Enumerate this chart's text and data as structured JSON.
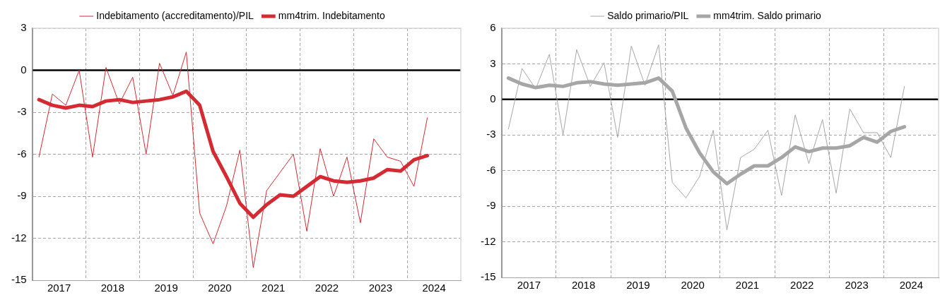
{
  "chart_data": [
    {
      "type": "line",
      "legend": "top",
      "grid": true,
      "marker": "none",
      "line_style": "solid",
      "x": [
        2017.125,
        2017.375,
        2017.625,
        2017.875,
        2018.125,
        2018.375,
        2018.625,
        2018.875,
        2019.125,
        2019.375,
        2019.625,
        2019.875,
        2020.125,
        2020.375,
        2020.625,
        2020.875,
        2021.125,
        2021.375,
        2021.625,
        2021.875,
        2022.125,
        2022.375,
        2022.625,
        2022.875,
        2023.125,
        2023.375,
        2023.625,
        2023.875,
        2024.125,
        2024.375
      ],
      "xlim": [
        2017,
        2025
      ],
      "xticks": [
        {
          "value": 2017.5,
          "label": "2017"
        },
        {
          "value": 2018,
          "label": null
        },
        {
          "value": 2018.5,
          "label": "2018"
        },
        {
          "value": 2019,
          "label": null
        },
        {
          "value": 2019.5,
          "label": "2019"
        },
        {
          "value": 2020,
          "label": null
        },
        {
          "value": 2020.5,
          "label": "2020"
        },
        {
          "value": 2021,
          "label": null
        },
        {
          "value": 2021.5,
          "label": "2021"
        },
        {
          "value": 2022,
          "label": null
        },
        {
          "value": 2022.5,
          "label": "2022"
        },
        {
          "value": 2023,
          "label": null
        },
        {
          "value": 2023.5,
          "label": "2023"
        },
        {
          "value": 2024,
          "label": null
        },
        {
          "value": 2024.5,
          "label": "2024"
        }
      ],
      "ylim": [
        -15,
        3
      ],
      "yticks": [
        -15,
        -12,
        -9,
        -6,
        -3,
        0,
        3
      ],
      "ref_lines": [
        {
          "axis": "y",
          "value": 0,
          "color": "#000000"
        }
      ],
      "series": [
        {
          "name": "Indebitamento (accreditamento)/PIL",
          "color": "#d42a32",
          "values": [
            -6.2,
            -1.7,
            -2.5,
            0.0,
            -6.2,
            0.2,
            -2.4,
            -0.5,
            -6.0,
            0.5,
            -1.8,
            1.3,
            -10.2,
            -12.4,
            -9.7,
            -5.7,
            -14.1,
            -8.6,
            -7.3,
            -6.0,
            -11.5,
            -5.6,
            -9.0,
            -6.2,
            -10.9,
            -4.9,
            -6.2,
            -6.5,
            -8.3,
            -3.4
          ]
        },
        {
          "name": "mm4trim. Indebitamento",
          "color": "#d42a32",
          "values": [
            -2.1,
            -2.5,
            -2.7,
            -2.5,
            -2.6,
            -2.2,
            -2.1,
            -2.3,
            -2.2,
            -2.1,
            -1.9,
            -1.5,
            -2.5,
            -5.8,
            -7.6,
            -9.5,
            -10.5,
            -9.6,
            -8.9,
            -9.0,
            -8.3,
            -7.6,
            -7.9,
            -8.0,
            -7.9,
            -7.7,
            -7.1,
            -7.2,
            -6.4,
            -6.1
          ]
        }
      ]
    },
    {
      "type": "line",
      "legend": "top",
      "grid": true,
      "marker": "none",
      "line_style": "solid",
      "x": [
        2017.125,
        2017.375,
        2017.625,
        2017.875,
        2018.125,
        2018.375,
        2018.625,
        2018.875,
        2019.125,
        2019.375,
        2019.625,
        2019.875,
        2020.125,
        2020.375,
        2020.625,
        2020.875,
        2021.125,
        2021.375,
        2021.625,
        2021.875,
        2022.125,
        2022.375,
        2022.625,
        2022.875,
        2023.125,
        2023.375,
        2023.625,
        2023.875,
        2024.125,
        2024.375
      ],
      "xlim": [
        2017,
        2025
      ],
      "xticks": [
        {
          "value": 2017.5,
          "label": "2017"
        },
        {
          "value": 2018,
          "label": null
        },
        {
          "value": 2018.5,
          "label": "2018"
        },
        {
          "value": 2019,
          "label": null
        },
        {
          "value": 2019.5,
          "label": "2019"
        },
        {
          "value": 2020,
          "label": null
        },
        {
          "value": 2020.5,
          "label": "2020"
        },
        {
          "value": 2021,
          "label": null
        },
        {
          "value": 2021.5,
          "label": "2021"
        },
        {
          "value": 2022,
          "label": null
        },
        {
          "value": 2022.5,
          "label": "2022"
        },
        {
          "value": 2023,
          "label": null
        },
        {
          "value": 2023.5,
          "label": "2023"
        },
        {
          "value": 2024,
          "label": null
        },
        {
          "value": 2024.5,
          "label": "2024"
        }
      ],
      "ylim": [
        -15,
        6
      ],
      "yticks": [
        -15,
        -12,
        -9,
        -6,
        -3,
        0,
        3,
        6
      ],
      "ref_lines": [
        {
          "axis": "y",
          "value": 0,
          "color": "#000000"
        }
      ],
      "series": [
        {
          "name": "Saldo primario/PIL",
          "color": "#a6a6a6",
          "values": [
            -2.5,
            2.6,
            0.9,
            3.8,
            -3.0,
            4.2,
            1.1,
            3.1,
            -3.2,
            4.5,
            1.2,
            4.6,
            -7.0,
            -8.3,
            -6.5,
            -2.6,
            -11.0,
            -4.9,
            -4.2,
            -2.6,
            -8.1,
            -1.3,
            -5.4,
            -1.7,
            -7.9,
            -0.8,
            -2.8,
            -2.8,
            -4.9,
            1.1
          ]
        },
        {
          "name": "mm4trim. Saldo primario",
          "color": "#a6a6a6",
          "values": [
            1.8,
            1.3,
            1.0,
            1.2,
            1.1,
            1.4,
            1.5,
            1.3,
            1.2,
            1.3,
            1.4,
            1.8,
            0.7,
            -2.4,
            -4.5,
            -6.1,
            -7.1,
            -6.3,
            -5.6,
            -5.6,
            -4.9,
            -4.0,
            -4.4,
            -4.1,
            -4.1,
            -3.9,
            -3.2,
            -3.6,
            -2.7,
            -2.3
          ]
        }
      ]
    }
  ]
}
